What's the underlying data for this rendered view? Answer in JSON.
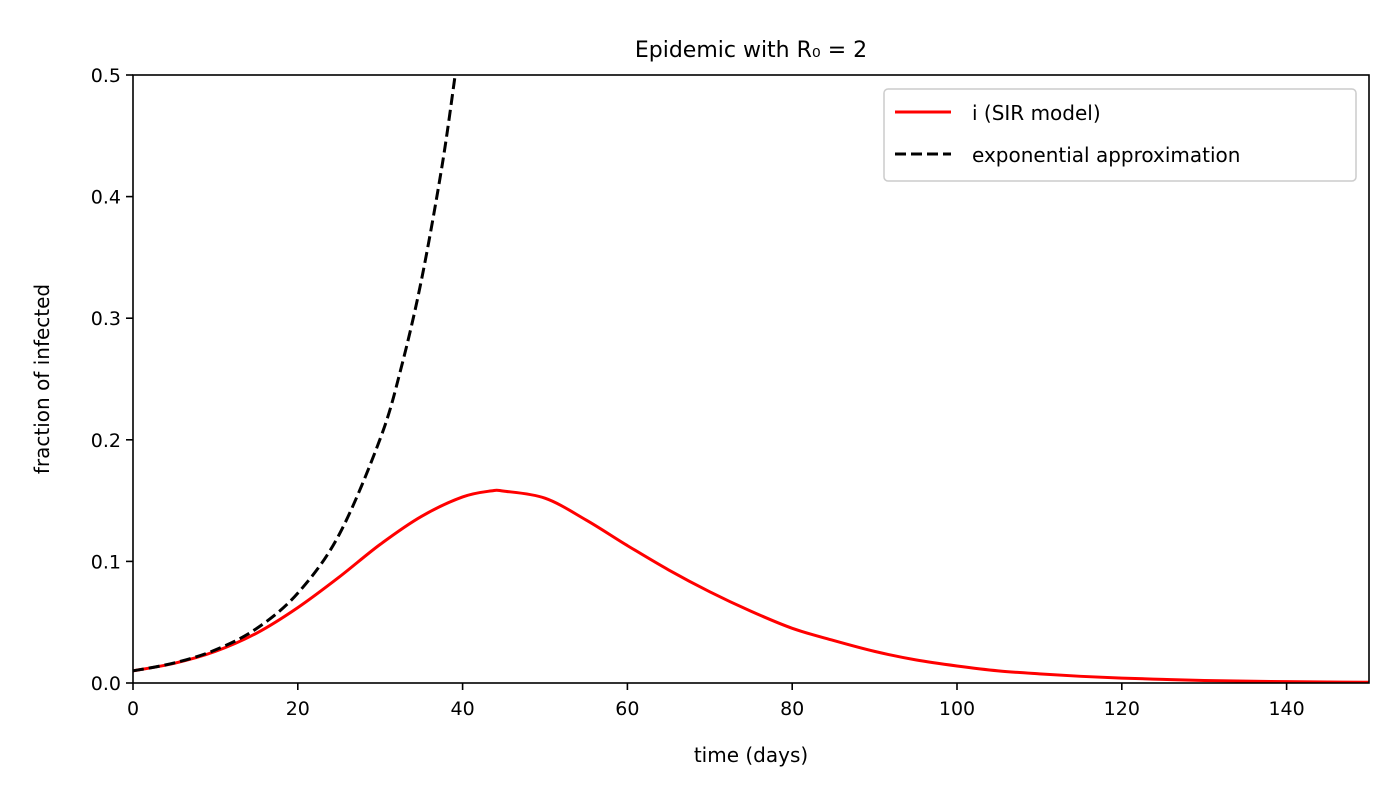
{
  "chart_data": {
    "type": "line",
    "title": "Epidemic with R₀ = 2",
    "xlabel": "time (days)",
    "ylabel": "fraction of infected",
    "xlim": [
      0,
      150
    ],
    "ylim": [
      0,
      0.5
    ],
    "xticks": [
      "0",
      "20",
      "40",
      "60",
      "80",
      "100",
      "120",
      "140"
    ],
    "yticks": [
      "0.0",
      "0.1",
      "0.2",
      "0.3",
      "0.4",
      "0.5"
    ],
    "grid": false,
    "legend_position": "top-right",
    "series": [
      {
        "name": "i (SIR model)",
        "color": "#ff0000",
        "style": "solid",
        "x": [
          0,
          5,
          10,
          15,
          20,
          25,
          30,
          35,
          40,
          43.5,
          45,
          50,
          55,
          60,
          65,
          70,
          75,
          80,
          85,
          90,
          95,
          100,
          105,
          110,
          115,
          120,
          125,
          130,
          135,
          140,
          145,
          150
        ],
        "y": [
          0.01,
          0.0162,
          0.026,
          0.041,
          0.062,
          0.087,
          0.114,
          0.137,
          0.153,
          0.158,
          0.1578,
          0.152,
          0.134,
          0.113,
          0.093,
          0.075,
          0.059,
          0.045,
          0.035,
          0.026,
          0.019,
          0.014,
          0.01,
          0.0075,
          0.0055,
          0.004,
          0.003,
          0.0021,
          0.0015,
          0.0011,
          0.0008,
          0.0006
        ]
      },
      {
        "name": "exponential approximation",
        "color": "#000000",
        "style": "dashed",
        "x": [
          0,
          5,
          10,
          15,
          20,
          25,
          30,
          32.5,
          35,
          37.5,
          39.1
        ],
        "y": [
          0.01,
          0.0165,
          0.0272,
          0.0448,
          0.0739,
          0.1218,
          0.2009,
          0.258,
          0.3312,
          0.425,
          0.5
        ]
      }
    ]
  }
}
